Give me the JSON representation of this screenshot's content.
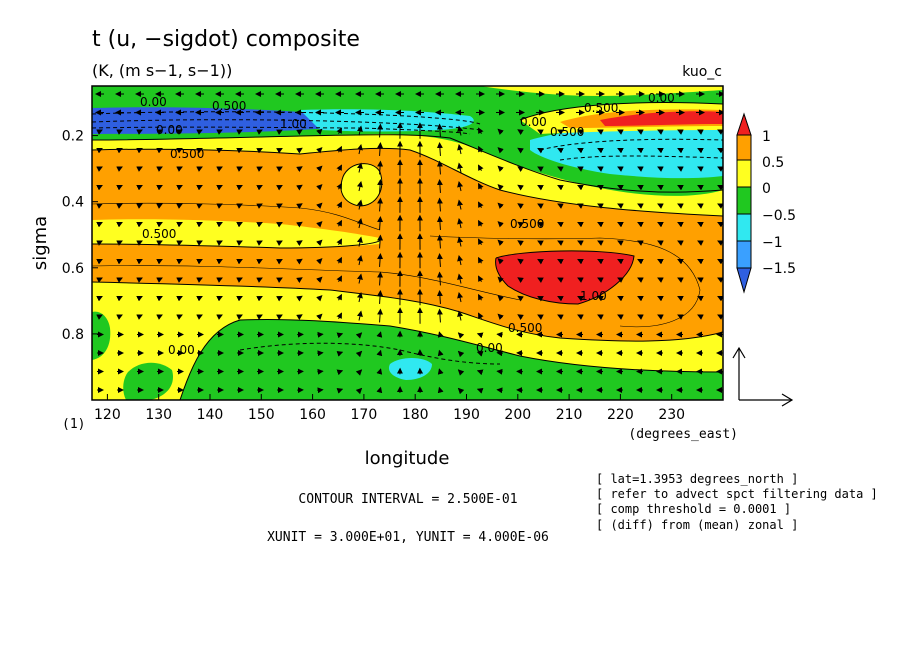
{
  "header": {
    "title": "t (u, −sigdot) composite",
    "units": "(K, (m s−1, s−1))",
    "tag": "kuo_c"
  },
  "footer": {
    "contour_interval": "CONTOUR INTERVAL = 2.500E-01",
    "unit_scale": "XUNIT = 3.000E+01, YUNIT = 4.000E-06",
    "notes": [
      "[ lat=1.3953 degrees_north ]",
      "[ refer to advect spct filtering data ]",
      "[ comp threshold = 0.0001 ]",
      "[ (diff) from (mean) zonal ]"
    ]
  },
  "chart_data": {
    "type": "heatmap",
    "title": "t (u, −sigdot) composite",
    "xlabel": "longitude",
    "xunit": "(degrees_east)",
    "ylabel": "sigma",
    "ytick_extra": "(1)",
    "xlim": [
      117,
      240
    ],
    "ylim": [
      0.05,
      1.0
    ],
    "y_inverted": true,
    "xticks": [
      120,
      130,
      140,
      150,
      160,
      170,
      180,
      190,
      200,
      210,
      220,
      230
    ],
    "yticks": [
      0.2,
      0.4,
      0.6,
      0.8
    ],
    "levels": [
      -1.5,
      -1,
      -0.5,
      0,
      0.5,
      1
    ],
    "colorbar_labels": [
      "1",
      "0.5",
      "0",
      "−0.5",
      "−1",
      "−1.5"
    ],
    "colors": {
      "lt_-1.5": "#2f5fe0",
      "-1.5_-1": "#3aa0ff",
      "-1_-0.5": "#30e8f0",
      "-0.5_0": "#20c820",
      "0_0.5": "#ffff20",
      "0.5_1": "#ffa000",
      "gt_1": "#f02020"
    },
    "contour_labels": [
      "0.00",
      "0.500",
      "1.00",
      "0.500",
      "0.00",
      "0.500",
      "0.500",
      "0.00",
      "0.500",
      "0.00",
      "0.500",
      "1.00",
      "0.500",
      "0.00",
      "0.00"
    ],
    "vector_field": "u, -sigdot (reference arrow XUNIT = 3.000E+01, YUNIT = 4.000E-06)",
    "grid": false,
    "legend": "right colorbar"
  }
}
